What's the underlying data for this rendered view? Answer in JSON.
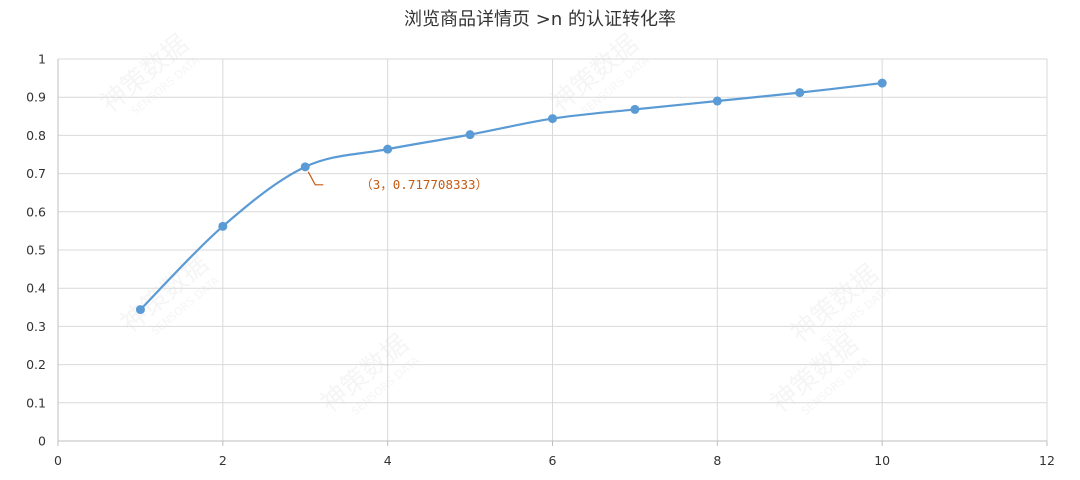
{
  "chart_data": {
    "type": "scatter",
    "title": "浏览商品详情页 >n 的认证转化率",
    "xlabel": "",
    "ylabel": "",
    "xlim": [
      0,
      12
    ],
    "ylim": [
      0,
      1
    ],
    "x_ticks": [
      "0",
      "2",
      "4",
      "6",
      "8",
      "10",
      "12"
    ],
    "y_ticks": [
      "0",
      "0.1",
      "0.2",
      "0.3",
      "0.4",
      "0.5",
      "0.6",
      "0.7",
      "0.8",
      "0.9",
      "1"
    ],
    "grid": true,
    "smooth_line": true,
    "series": [
      {
        "color": "#5b9bd5",
        "x": [
          1,
          2,
          3,
          4,
          5,
          6,
          7,
          8,
          9,
          10
        ],
        "y": [
          0.344,
          0.562,
          0.717708333,
          0.764,
          0.802,
          0.844,
          0.868,
          0.89,
          0.912,
          0.937
        ]
      }
    ],
    "annotations": [
      {
        "x": 3,
        "y": 0.717708333,
        "text": "（3，0.717708333）",
        "color": "#c55a11"
      }
    ],
    "watermark": {
      "text_cn": "神策数据",
      "text_en": "SENSORS DATA"
    }
  }
}
